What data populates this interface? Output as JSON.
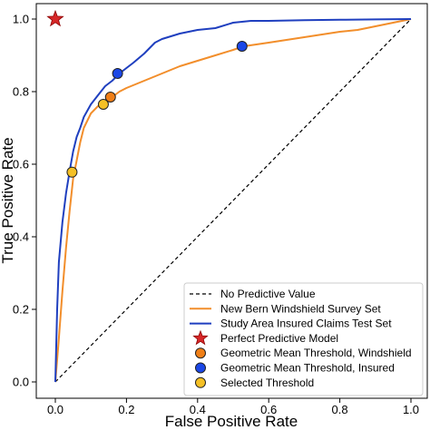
{
  "chart_data": {
    "type": "line",
    "xlabel": "False Positive Rate",
    "ylabel": "True Positive Rate",
    "xlim": [
      0.0,
      1.0
    ],
    "ylim": [
      0.0,
      1.0
    ],
    "xticks": [
      "0.0",
      "0.2",
      "0.4",
      "0.6",
      "0.8",
      "1.0"
    ],
    "yticks": [
      "0.0",
      "0.2",
      "0.4",
      "0.6",
      "0.8",
      "1.0"
    ],
    "grid": false,
    "legend_position": "bottom-right",
    "series": [
      {
        "name": "No Predictive Value",
        "style": "dashed",
        "color": "#000000",
        "x": [
          0.0,
          1.0
        ],
        "y": [
          0.0,
          1.0
        ]
      },
      {
        "name": "New Bern Windshield Survey Set",
        "style": "solid",
        "color": "#f28e2b",
        "x": [
          0.0,
          0.01,
          0.02,
          0.03,
          0.04,
          0.05,
          0.06,
          0.07,
          0.08,
          0.09,
          0.1,
          0.12,
          0.14,
          0.16,
          0.18,
          0.2,
          0.25,
          0.3,
          0.35,
          0.4,
          0.45,
          0.5,
          0.53,
          0.6,
          0.7,
          0.8,
          0.85,
          0.9,
          0.95,
          1.0
        ],
        "y": [
          0.0,
          0.12,
          0.25,
          0.37,
          0.47,
          0.56,
          0.61,
          0.66,
          0.7,
          0.72,
          0.74,
          0.76,
          0.775,
          0.785,
          0.8,
          0.81,
          0.83,
          0.85,
          0.87,
          0.885,
          0.9,
          0.915,
          0.925,
          0.935,
          0.95,
          0.965,
          0.97,
          0.98,
          0.99,
          1.0
        ]
      },
      {
        "name": "Study Area Insured Claims Test Set",
        "style": "solid",
        "color": "#1f3fbf",
        "x": [
          0.0,
          0.005,
          0.01,
          0.02,
          0.03,
          0.04,
          0.05,
          0.06,
          0.07,
          0.08,
          0.1,
          0.12,
          0.14,
          0.16,
          0.18,
          0.2,
          0.22,
          0.25,
          0.28,
          0.3,
          0.35,
          0.4,
          0.45,
          0.5,
          0.55,
          0.6,
          0.7,
          0.8,
          0.9,
          1.0
        ],
        "y": [
          0.0,
          0.2,
          0.33,
          0.44,
          0.52,
          0.58,
          0.635,
          0.675,
          0.7,
          0.73,
          0.765,
          0.79,
          0.815,
          0.83,
          0.85,
          0.865,
          0.88,
          0.905,
          0.935,
          0.945,
          0.96,
          0.97,
          0.975,
          0.99,
          0.995,
          0.995,
          0.997,
          0.998,
          0.999,
          1.0
        ]
      }
    ],
    "markers": [
      {
        "name": "Perfect Predictive Model",
        "shape": "star",
        "color": "#d62728",
        "x": 0.0,
        "y": 1.0
      },
      {
        "name": "Geometric Mean Threshold, Windshield",
        "shape": "circle",
        "color": "#f07f17",
        "points": [
          {
            "x": 0.155,
            "y": 0.785
          }
        ]
      },
      {
        "name": "Geometric Mean Threshold, Insured",
        "shape": "circle",
        "color": "#1b47e6",
        "points": [
          {
            "x": 0.175,
            "y": 0.85
          },
          {
            "x": 0.525,
            "y": 0.925
          }
        ]
      },
      {
        "name": "Selected Threshold",
        "shape": "circle",
        "color": "#f5c025",
        "points": [
          {
            "x": 0.047,
            "y": 0.578
          },
          {
            "x": 0.135,
            "y": 0.765
          }
        ]
      }
    ]
  }
}
